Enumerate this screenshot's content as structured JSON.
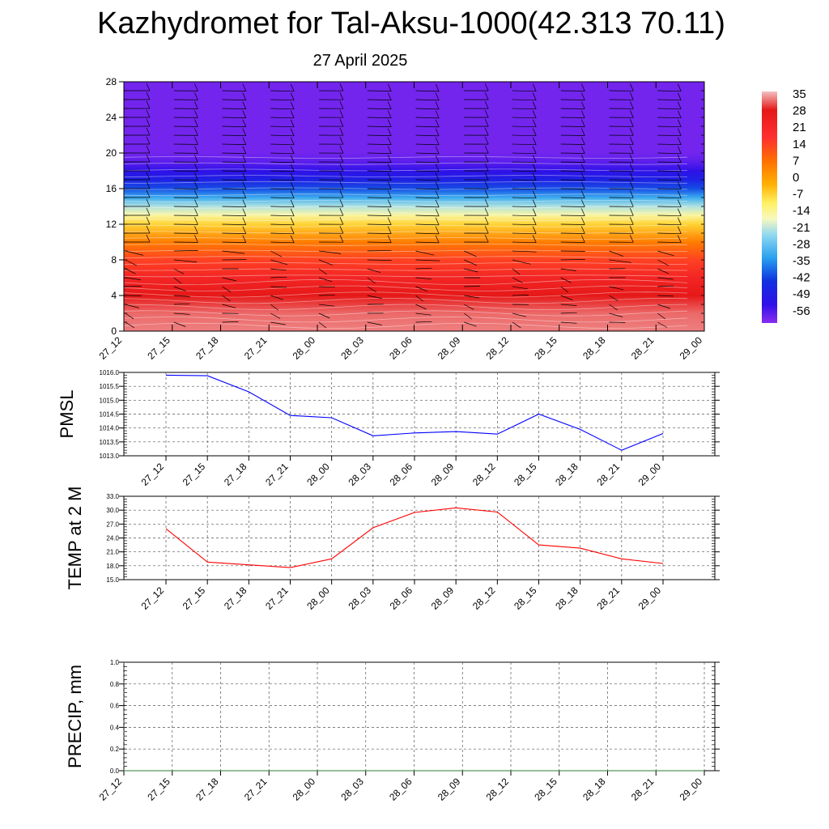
{
  "title": "Kazhydromet for Tal-Aksu-1000(42.313 70.11)",
  "subtitle": "27 April 2025",
  "colors": {
    "pmsl_line": "#0000ff",
    "temp_line": "#ff0000",
    "precip_line": "#2e7d32",
    "grid": "#555555",
    "frame": "#000000"
  },
  "chart_data": [
    {
      "type": "heatmap",
      "title": "",
      "xlabel": "",
      "ylabel": "",
      "categories": [
        "27_12",
        "27_15",
        "27_18",
        "27_21",
        "28_00",
        "28_03",
        "28_06",
        "28_09",
        "28_12",
        "28_15",
        "28_18",
        "28_21",
        "29_00"
      ],
      "y_ticks": [
        "0",
        "4",
        "8",
        "12",
        "16",
        "20",
        "24",
        "28"
      ],
      "ylim": [
        0,
        28
      ],
      "colorbar": {
        "labels": [
          "35",
          "28",
          "21",
          "14",
          "7",
          "0",
          "-7",
          "-14",
          "-21",
          "-28",
          "-35",
          "-42",
          "-49",
          "-56"
        ],
        "range": [
          -60,
          37
        ],
        "placement": "right"
      },
      "layers": [
        {
          "level": 0,
          "value": 34
        },
        {
          "level": 2,
          "value": 33
        },
        {
          "level": 4,
          "value": 29
        },
        {
          "level": 6,
          "value": 23
        },
        {
          "level": 8,
          "value": 15
        },
        {
          "level": 10,
          "value": 6
        },
        {
          "level": 12,
          "value": -6
        },
        {
          "level": 13,
          "value": -14
        },
        {
          "level": 14,
          "value": -21
        },
        {
          "level": 15,
          "value": -31
        },
        {
          "level": 16,
          "value": -40
        },
        {
          "level": 17,
          "value": -47
        },
        {
          "level": 18,
          "value": -52
        },
        {
          "level": 19,
          "value": -56
        },
        {
          "level": 20,
          "value": -58
        },
        {
          "level": 28,
          "value": -58
        }
      ],
      "wind_barbs": true
    },
    {
      "type": "line",
      "ylabel": "PMSL",
      "categories": [
        "27_12",
        "27_15",
        "27_18",
        "27_21",
        "28_00",
        "28_03",
        "28_06",
        "28_09",
        "28_12",
        "28_15",
        "28_18",
        "28_21",
        "29_00"
      ],
      "y_ticks": [
        "1013.0",
        "1013.5",
        "1014.0",
        "1014.5",
        "1015.0",
        "1015.5",
        "1016.0"
      ],
      "ylim": [
        1013.0,
        1016.0
      ],
      "series": [
        {
          "values": [
            1015.9,
            1015.88,
            1015.3,
            1014.45,
            1014.37,
            1013.72,
            1013.82,
            1013.87,
            1013.78,
            1014.5,
            1013.95,
            1013.2,
            1013.8
          ]
        }
      ],
      "grid": true
    },
    {
      "type": "line",
      "ylabel": "TEMP at 2 M",
      "categories": [
        "27_12",
        "27_15",
        "27_18",
        "27_21",
        "28_00",
        "28_03",
        "28_06",
        "28_09",
        "28_12",
        "28_15",
        "28_18",
        "28_21",
        "29_00"
      ],
      "y_ticks": [
        "15.0",
        "18.0",
        "21.0",
        "24.0",
        "27.0",
        "30.0",
        "33.0"
      ],
      "ylim": [
        15.0,
        33.0
      ],
      "series": [
        {
          "values": [
            26.0,
            18.8,
            18.2,
            17.6,
            19.5,
            26.2,
            29.5,
            30.5,
            29.6,
            22.5,
            21.8,
            19.5,
            18.5
          ]
        }
      ],
      "grid": true
    },
    {
      "type": "line",
      "ylabel": "PRECIP, mm",
      "categories": [
        "27_12",
        "27_15",
        "27_18",
        "27_21",
        "28_00",
        "28_03",
        "28_06",
        "28_09",
        "28_12",
        "28_15",
        "28_18",
        "28_21",
        "29_00"
      ],
      "y_ticks": [
        "0.0",
        "0.2",
        "0.4",
        "0.6",
        "0.8",
        "1.0"
      ],
      "ylim": [
        0.0,
        1.0
      ],
      "series": [
        {
          "values": [
            0,
            0,
            0,
            0,
            0,
            0,
            0,
            0,
            0,
            0,
            0,
            0,
            0
          ]
        }
      ],
      "grid": true
    }
  ]
}
